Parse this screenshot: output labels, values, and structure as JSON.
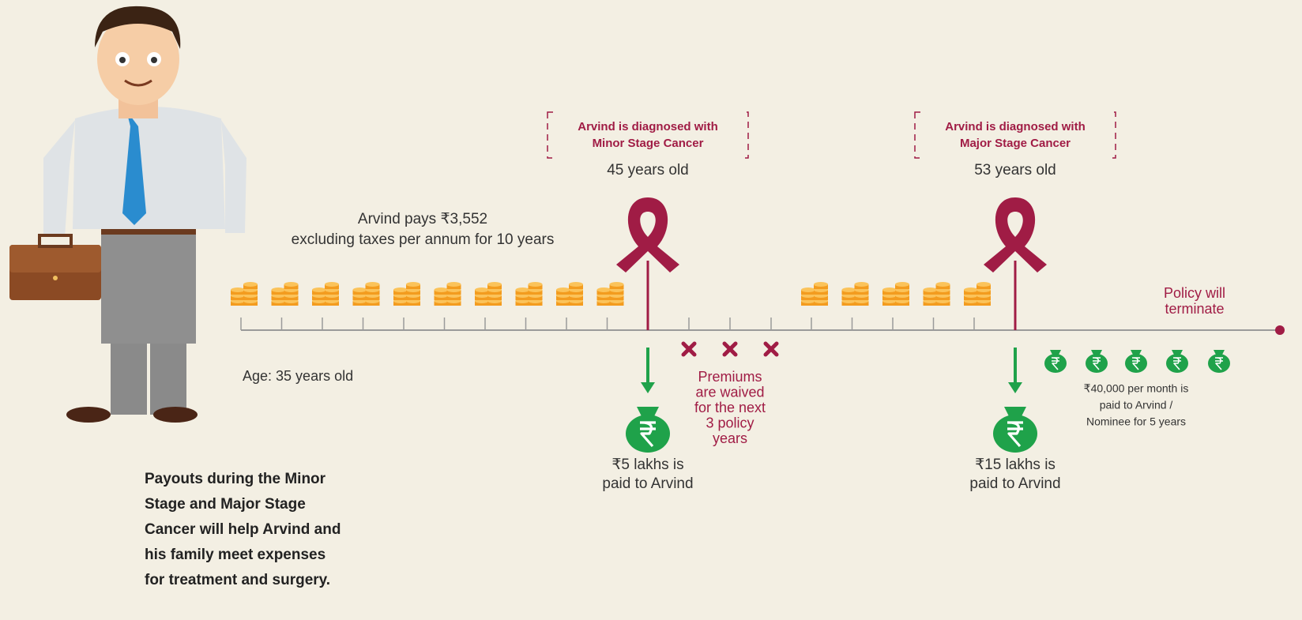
{
  "events": [
    {
      "diagnosis": [
        "Arvind is diagnosed with",
        "Minor Stage Cancer"
      ],
      "age": "45 years old",
      "payout": [
        "₹5 lakhs is",
        "paid to Arvind"
      ]
    },
    {
      "diagnosis": [
        "Arvind is diagnosed with",
        "Major Stage Cancer"
      ],
      "age": "53 years old",
      "payout": [
        "₹15 lakhs is",
        "paid to Arvind"
      ]
    }
  ],
  "premium": [
    "Arvind pays ₹3,552",
    "excluding taxes per annum for 10 years"
  ],
  "start_age": "Age: 35 years old",
  "waiver": [
    "Premiums",
    "are waived",
    "for the next",
    "3 policy",
    "years"
  ],
  "termination": [
    "Policy will",
    "terminate"
  ],
  "monthly_payout": [
    "₹40,000 per month is",
    "paid to Arvind /",
    "Nominee for 5 years"
  ],
  "summary": [
    "Payouts during the Minor",
    "Stage and Major Stage",
    "Cancer will help Arvind and",
    "his family meet expenses",
    "for treatment and surgery."
  ]
}
